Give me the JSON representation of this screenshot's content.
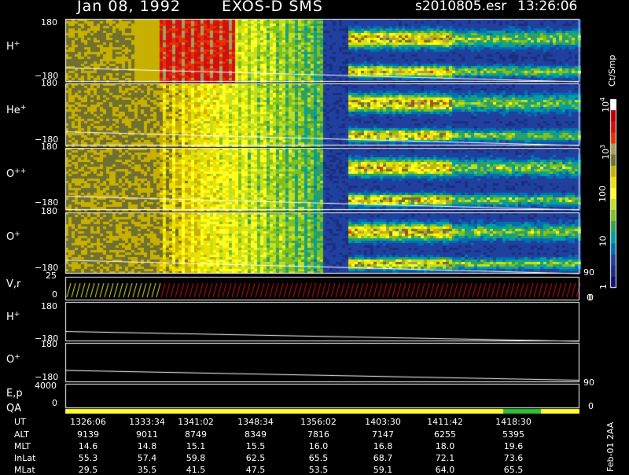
{
  "header": {
    "date": "Jan 08, 1992",
    "instrument": "EXOS-D SMS",
    "file": "s2010805.esr",
    "time": "13:26:06"
  },
  "panels": [
    {
      "label_main": "H",
      "label_sup": "+",
      "ymax": "180",
      "ymin": "−180"
    },
    {
      "label_main": "He",
      "label_sup": "+",
      "ymax": "180",
      "ymin": "−180"
    },
    {
      "label_main": "O",
      "label_sup": "++",
      "ymax": "180",
      "ymin": "−180"
    },
    {
      "label_main": "O",
      "label_sup": "+",
      "ymax": "180",
      "ymin": "−180"
    }
  ],
  "lower_panels": {
    "vr": {
      "label": "V,r",
      "ymax": "25",
      "ymin": "0",
      "right_top": "90",
      "right_bottom": "0"
    },
    "h_plus": {
      "label_main": "H",
      "label_sup": "+",
      "ymax": "180",
      "ymin": "−180"
    },
    "o_plus": {
      "label_main": "O",
      "label_sup": "+",
      "ymax": "180",
      "ymin": "−180"
    },
    "ep": {
      "label": "E,p",
      "ymax": "4000",
      "ymin": "0",
      "right_top": "90"
    },
    "qa": {
      "label": "QA",
      "right": "0"
    }
  },
  "colorbar": {
    "unit": "Ct/Smp",
    "ticks": [
      {
        "base": "10",
        "exp": "4",
        "value": 10000
      },
      {
        "base": "10",
        "exp": "3",
        "value": 1000
      },
      {
        "base": "100",
        "exp": "",
        "value": 100
      },
      {
        "base": "10",
        "exp": "",
        "value": 10
      },
      {
        "base": "1",
        "exp": "",
        "value": 1
      }
    ],
    "bottom_label": "0",
    "colors": [
      "#ffffff",
      "#b80000",
      "#d01010",
      "#e83000",
      "#a0a060",
      "#707030",
      "#c8b000",
      "#f0e000",
      "#ffff20",
      "#c0e020",
      "#80c020",
      "#30a060",
      "#00a0a0",
      "#0070b0",
      "#2040a0",
      "#1c2e80",
      "#101070"
    ]
  },
  "chart_data": {
    "type": "heatmap",
    "title": "Jan 08, 1992   EXOS-D SMS",
    "color_scale": "log",
    "colorbar_range": [
      1,
      10000
    ],
    "panels": [
      "H+",
      "He+",
      "O++",
      "O+"
    ],
    "pitch_angle_range": [
      -180,
      180
    ],
    "time_ticks": [
      "1326:06",
      "1333:34",
      "1341:02",
      "1348:34",
      "1356:02",
      "1403:30",
      "1411:42",
      "1418:30"
    ],
    "orbit_table": {
      "rows": [
        {
          "name": "UT",
          "values": [
            "1326:06",
            "1333:34",
            "1341:02",
            "1348:34",
            "1356:02",
            "1403:30",
            "1411:42",
            "1418:30"
          ]
        },
        {
          "name": "ALT",
          "values": [
            "9139",
            "9011",
            "8749",
            "8349",
            "7816",
            "7147",
            "6255",
            "5395"
          ]
        },
        {
          "name": "MLT",
          "values": [
            "14.6",
            "14.8",
            "15.1",
            "15.5",
            "16.0",
            "16.8",
            "18.0",
            "19.6"
          ]
        },
        {
          "name": "InLat",
          "values": [
            "55.3",
            "57.4",
            "59.8",
            "62.5",
            "65.5",
            "68.7",
            "72.1",
            "73.6"
          ]
        },
        {
          "name": "MLat",
          "values": [
            "29.5",
            "35.5",
            "41.5",
            "47.5",
            "53.5",
            "59.1",
            "64.0",
            "65.5"
          ]
        }
      ]
    }
  },
  "footer": {
    "side_note": "Feb-01 2AA"
  }
}
